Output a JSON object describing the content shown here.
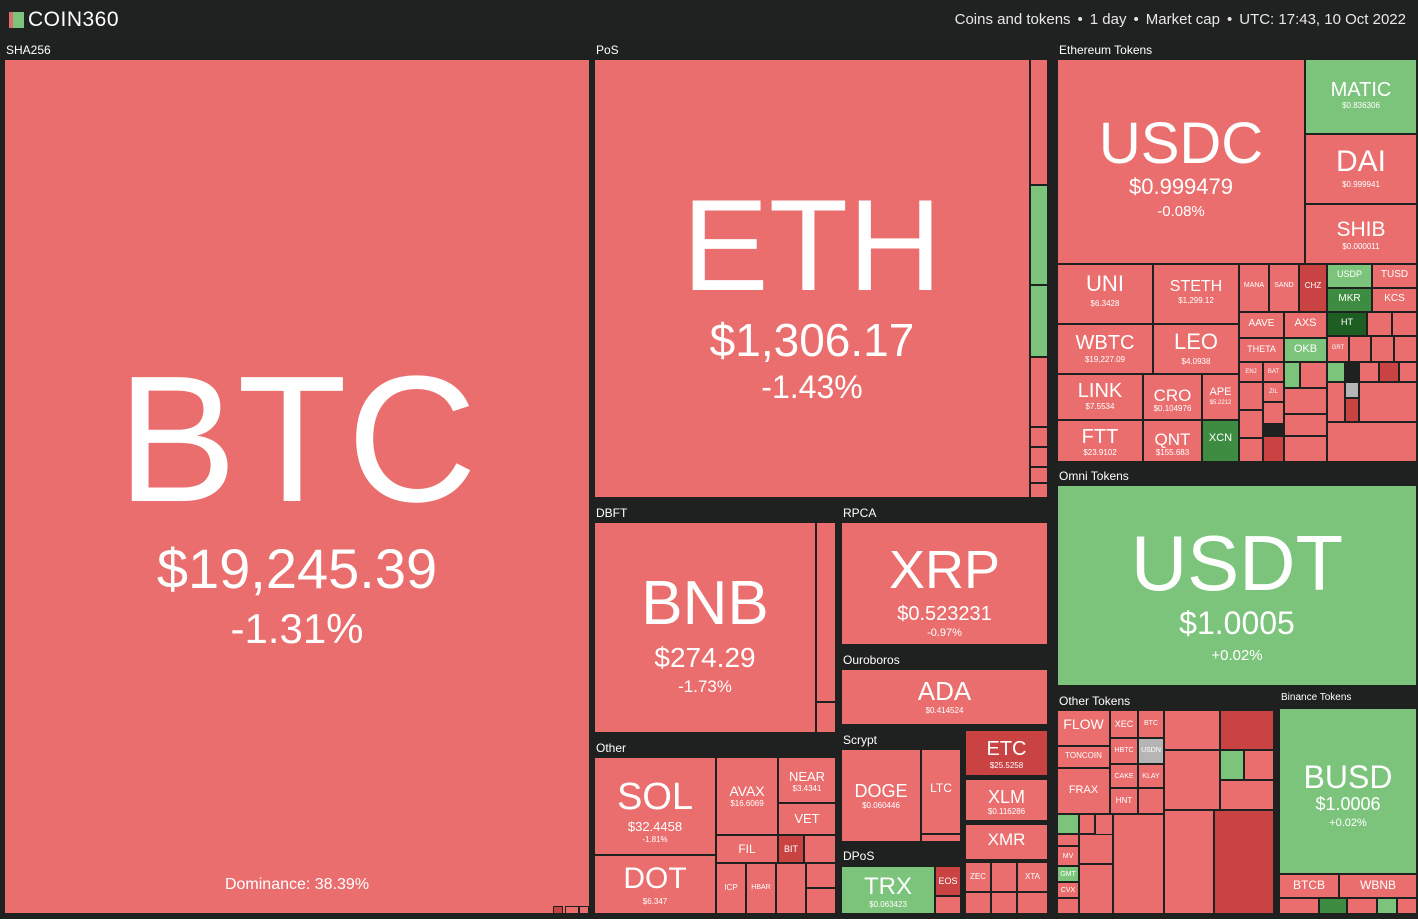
{
  "header": {
    "logo": "COIN360",
    "filters": [
      "Coins and tokens",
      "1 day",
      "Market cap"
    ],
    "timestamp": "UTC: 17:43, 10 Oct 2022"
  },
  "groups": {
    "sha256": "SHA256",
    "pos": "PoS",
    "ethereum_tokens": "Ethereum Tokens",
    "dbft": "DBFT",
    "rpca": "RPCA",
    "ouroboros": "Ouroboros",
    "other": "Other",
    "scrypt": "Scrypt",
    "dpos": "DPoS",
    "omni_tokens": "Omni Tokens",
    "other_tokens": "Other Tokens",
    "binance_tokens": "Binance Tokens"
  },
  "colors": {
    "down": "#ea6e6e",
    "down_strong": "#c94343",
    "up": "#7cc47c",
    "up_strong": "#3d8c41",
    "background": "#1f2120"
  },
  "coins": {
    "btc": {
      "symbol": "BTC",
      "price": "$19,245.39",
      "change": "-1.31%",
      "dominance": "Dominance: 38.39%"
    },
    "eth": {
      "symbol": "ETH",
      "price": "$1,306.17",
      "change": "-1.43%"
    },
    "bnb": {
      "symbol": "BNB",
      "price": "$274.29",
      "change": "-1.73%"
    },
    "xrp": {
      "symbol": "XRP",
      "price": "$0.523231",
      "change": "-0.97%"
    },
    "ada": {
      "symbol": "ADA",
      "price": "$0.414524"
    },
    "sol": {
      "symbol": "SOL",
      "price": "$32.4458",
      "change": "-1.81%"
    },
    "dot": {
      "symbol": "DOT",
      "price": "$6.347"
    },
    "avax": {
      "symbol": "AVAX",
      "price": "$16.6069"
    },
    "near": {
      "symbol": "NEAR",
      "price": "$3.4341"
    },
    "vet": {
      "symbol": "VET"
    },
    "fil": {
      "symbol": "FIL"
    },
    "bit": {
      "symbol": "BIT"
    },
    "icp": {
      "symbol": "ICP"
    },
    "hbar": {
      "symbol": "HBAR"
    },
    "doge": {
      "symbol": "DOGE",
      "price": "$0.060446"
    },
    "ltc": {
      "symbol": "LTC"
    },
    "etc": {
      "symbol": "ETC",
      "price": "$25.5258"
    },
    "xlm": {
      "symbol": "XLM",
      "price": "$0.116286"
    },
    "xmr": {
      "symbol": "XMR"
    },
    "zec": {
      "symbol": "ZEC"
    },
    "xtz_bottom": {
      "symbol": "XTA"
    },
    "trx": {
      "symbol": "TRX",
      "price": "$0.063423"
    },
    "eos": {
      "symbol": "EOS"
    },
    "usdc": {
      "symbol": "USDC",
      "price": "$0.999479",
      "change": "-0.08%"
    },
    "matic": {
      "symbol": "MATIC",
      "price": "$0.836306"
    },
    "dai": {
      "symbol": "DAI",
      "price": "$0.999941"
    },
    "shib": {
      "symbol": "SHIB",
      "price": "$0.000011"
    },
    "uni": {
      "symbol": "UNI",
      "price": "$6.3428"
    },
    "steth": {
      "symbol": "STETH",
      "price": "$1,299.12"
    },
    "wbtc": {
      "symbol": "WBTC",
      "price": "$19,227.09"
    },
    "leo": {
      "symbol": "LEO",
      "price": "$4.0938"
    },
    "link": {
      "symbol": "LINK",
      "price": "$7.5534"
    },
    "cro": {
      "symbol": "CRO",
      "price": "$0.104976"
    },
    "ape": {
      "symbol": "APE",
      "price": "$5.2212"
    },
    "ftt": {
      "symbol": "FTT",
      "price": "$23.9102"
    },
    "qnt": {
      "symbol": "QNT",
      "price": "$155.683"
    },
    "xcn": {
      "symbol": "XCN"
    },
    "mana": {
      "symbol": "MANA"
    },
    "sand": {
      "symbol": "SAND"
    },
    "chz": {
      "symbol": "CHZ"
    },
    "usdp": {
      "symbol": "USDP"
    },
    "tusd": {
      "symbol": "TUSD"
    },
    "mkr": {
      "symbol": "MKR"
    },
    "kcs": {
      "symbol": "KCS"
    },
    "aave": {
      "symbol": "AAVE"
    },
    "axs": {
      "symbol": "AXS"
    },
    "ht": {
      "symbol": "HT"
    },
    "theta": {
      "symbol": "THETA"
    },
    "okb": {
      "symbol": "OKB"
    },
    "grt": {
      "symbol": "GRT"
    },
    "enj": {
      "symbol": "ENJ"
    },
    "bat": {
      "symbol": "BAT"
    },
    "zil": {
      "symbol": "ZIL"
    },
    "usdt": {
      "symbol": "USDT",
      "price": "$1.0005",
      "change": "+0.02%"
    },
    "flow": {
      "symbol": "FLOW"
    },
    "xec": {
      "symbol": "XEC"
    },
    "btc_other": {
      "symbol": "BTC"
    },
    "toncoin": {
      "symbol": "TONCOIN"
    },
    "hbtc": {
      "symbol": "HBTC"
    },
    "usdn": {
      "symbol": "USDN"
    },
    "frax": {
      "symbol": "FRAX"
    },
    "cake": {
      "symbol": "CAKE"
    },
    "klay": {
      "symbol": "KLAY"
    },
    "hnt": {
      "symbol": "HNT"
    },
    "mv": {
      "symbol": "MV"
    },
    "gmt": {
      "symbol": "GMT"
    },
    "cvx": {
      "symbol": "CVX"
    },
    "busd": {
      "symbol": "BUSD",
      "price": "$1.0006",
      "change": "+0.02%"
    },
    "btcb": {
      "symbol": "BTCB"
    },
    "wbnb": {
      "symbol": "WBNB"
    }
  }
}
